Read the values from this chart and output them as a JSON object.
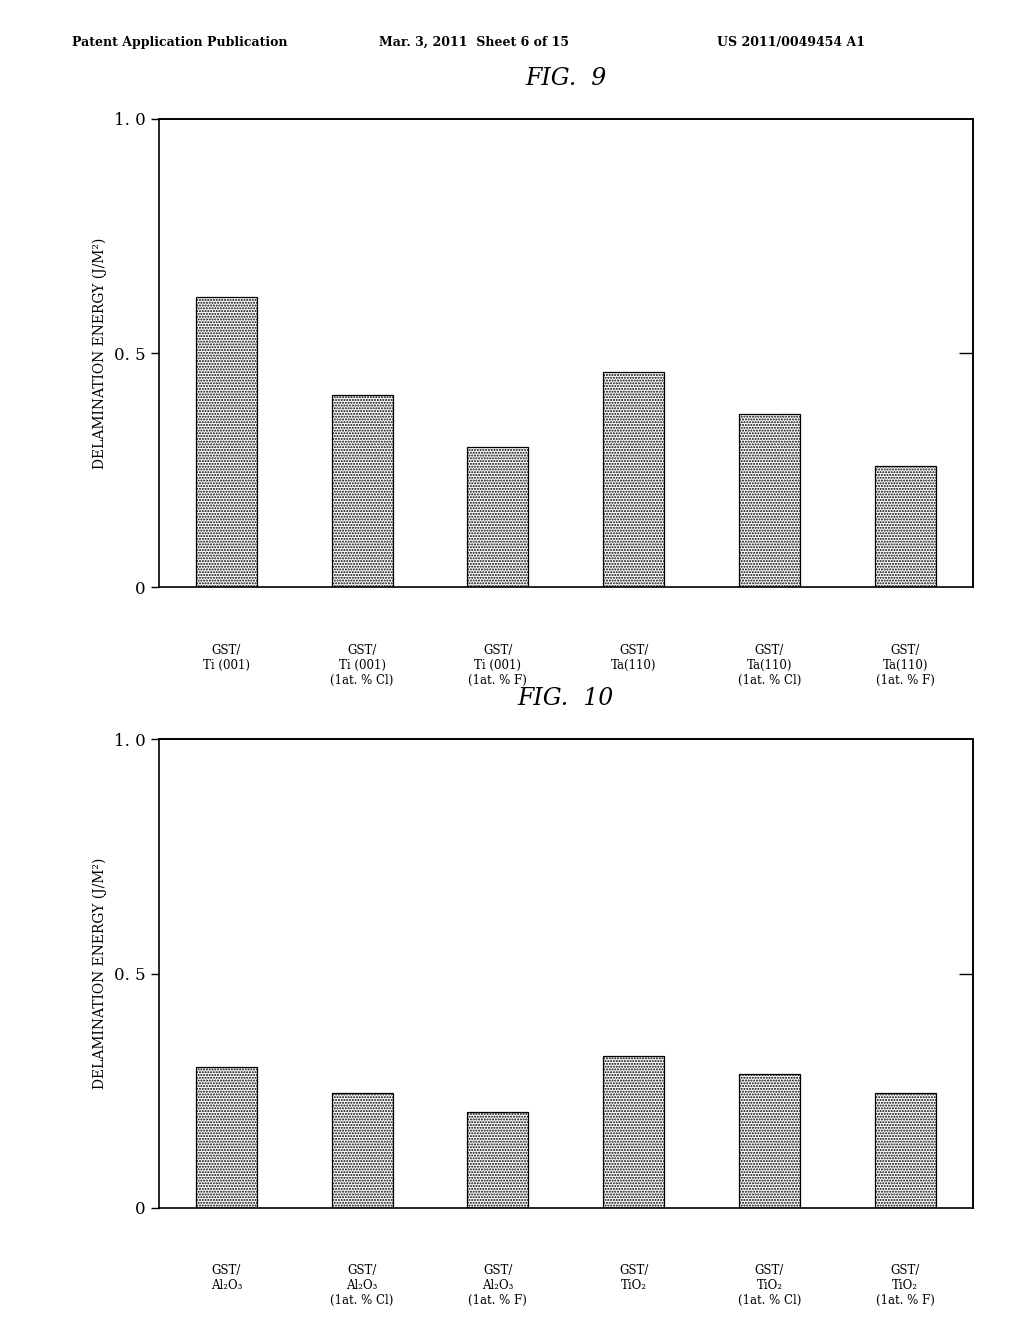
{
  "fig9": {
    "title": "FIG.  9",
    "values": [
      0.62,
      0.41,
      0.3,
      0.46,
      0.37,
      0.26
    ],
    "labels_line1": [
      "GST/",
      "GST/",
      "GST/",
      "GST/",
      "GST/",
      "GST/"
    ],
    "labels_line2": [
      "Ti (001)",
      "Ti (001)",
      "Ti (001)",
      "Ta(110)",
      "Ta(110)",
      "Ta(110)"
    ],
    "labels_line3": [
      "",
      "(1at. % Cl)",
      "(1at. % F)",
      "",
      "(1at. % Cl)",
      "(1at. % F)"
    ],
    "ylabel": "DELAMINATION ENERGY (J/M²)",
    "ylim": [
      0,
      1.0
    ],
    "yticks": [
      0,
      0.5,
      1.0
    ]
  },
  "fig10": {
    "title": "FIG.  10",
    "values": [
      0.3,
      0.245,
      0.205,
      0.325,
      0.285,
      0.245
    ],
    "labels_line1": [
      "GST/",
      "GST/",
      "GST/",
      "GST/",
      "GST/",
      "GST/"
    ],
    "labels_line2": [
      "Al₂O₃",
      "Al₂O₃",
      "Al₂O₃",
      "TiO₂",
      "TiO₂",
      "TiO₂"
    ],
    "labels_line3": [
      "",
      "(1at. % Cl)",
      "(1at. % F)",
      "",
      "(1at. % Cl)",
      "(1at. % F)"
    ],
    "ylabel": "DELAMINATION ENERGY (J/M²)",
    "ylim": [
      0,
      1.0
    ],
    "yticks": [
      0,
      0.5,
      1.0
    ]
  },
  "header_left": "Patent Application Publication",
  "header_mid": "Mar. 3, 2011  Sheet 6 of 15",
  "header_right": "US 2011/0049454 A1",
  "bg_color": "#ffffff"
}
